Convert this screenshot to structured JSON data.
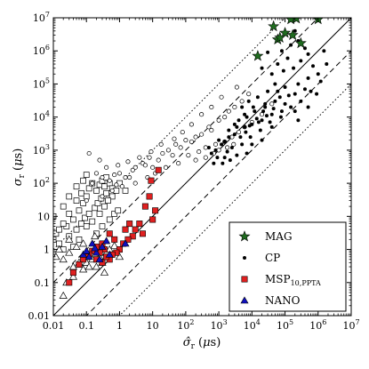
{
  "chart_data": {
    "type": "scatter",
    "xlabel": "σ̂_r (μs)",
    "ylabel": "σ_r (μs)",
    "x_scale": "log",
    "y_scale": "log",
    "xlim": [
      0.01,
      10000000
    ],
    "ylim": [
      0.01,
      10000000
    ],
    "x_tick_labels": [
      "0.01",
      "0.1",
      "1",
      "10",
      "10^2",
      "10^3",
      "10^4",
      "10^5",
      "10^6",
      "10^7"
    ],
    "y_tick_labels": [
      "0.01",
      "0.1",
      "1",
      "10",
      "10^2",
      "10^3",
      "10^4",
      "10^5",
      "10^6",
      "10^7"
    ],
    "reference_lines": [
      {
        "style": "solid",
        "ratio": 1
      },
      {
        "style": "dashed",
        "ratio": 0.1
      },
      {
        "style": "dashed",
        "ratio": 10
      },
      {
        "style": "dotted",
        "ratio": 0.01
      },
      {
        "style": "dotted",
        "ratio": 100
      }
    ],
    "legend_position": "bottom-right",
    "series": [
      {
        "name": "MAG",
        "marker": "star",
        "color": "#1f6b1f",
        "points": [
          [
            150000,
            9000000
          ],
          [
            220000,
            9500000
          ],
          [
            45000,
            5500000
          ],
          [
            1000000,
            9000000
          ],
          [
            100000,
            3500000
          ],
          [
            15000,
            700000
          ],
          [
            60000,
            2200000
          ],
          [
            300000,
            1700000
          ],
          [
            70000,
            2500000
          ],
          [
            170000,
            3000000
          ]
        ]
      },
      {
        "name": "CP",
        "marker": "dot",
        "color": "#000000",
        "points": [
          [
            200000,
            4000000
          ],
          [
            250000,
            2000000
          ],
          [
            150000,
            1500000
          ],
          [
            400000,
            1200000
          ],
          [
            500000,
            800000
          ],
          [
            80000,
            1000000
          ],
          [
            30000,
            900000
          ],
          [
            60000,
            400000
          ],
          [
            120000,
            600000
          ],
          [
            300000,
            500000
          ],
          [
            20000,
            300000
          ],
          [
            40000,
            200000
          ],
          [
            90000,
            250000
          ],
          [
            180000,
            300000
          ],
          [
            700000,
            350000
          ],
          [
            1500000,
            1000000
          ],
          [
            1000000,
            200000
          ],
          [
            500000,
            150000
          ],
          [
            250000,
            100000
          ],
          [
            100000,
            80000
          ],
          [
            50000,
            100000
          ],
          [
            30000,
            60000
          ],
          [
            15000,
            40000
          ],
          [
            8000,
            30000
          ],
          [
            5000,
            20000
          ],
          [
            70000,
            40000
          ],
          [
            200000,
            50000
          ],
          [
            400000,
            70000
          ],
          [
            600000,
            60000
          ],
          [
            150000,
            20000
          ],
          [
            80000,
            15000
          ],
          [
            40000,
            12000
          ],
          [
            20000,
            8000
          ],
          [
            10000,
            6000
          ],
          [
            6000,
            5000
          ],
          [
            3000,
            3000
          ],
          [
            2000,
            2500
          ],
          [
            1500,
            1800
          ],
          [
            4000,
            8000
          ],
          [
            7000,
            10000
          ],
          [
            12000,
            15000
          ],
          [
            25000,
            20000
          ],
          [
            50000,
            30000
          ],
          [
            35000,
            7000
          ],
          [
            18000,
            4000
          ],
          [
            9000,
            2500
          ],
          [
            5000,
            1500
          ],
          [
            2500,
            1200
          ],
          [
            1800,
            900
          ],
          [
            1200,
            1500
          ],
          [
            800,
            1000
          ],
          [
            600,
            800
          ],
          [
            1000,
            2000
          ],
          [
            3500,
            5000
          ],
          [
            6500,
            3500
          ],
          [
            14000,
            9000
          ],
          [
            28000,
            11000
          ],
          [
            45000,
            18000
          ],
          [
            100000,
            25000
          ],
          [
            300000,
            30000
          ],
          [
            130000,
            45000
          ],
          [
            60000,
            60000
          ],
          [
            25000,
            25000
          ],
          [
            11000,
            20000
          ],
          [
            6000,
            12000
          ],
          [
            3000,
            6000
          ],
          [
            2000,
            4000
          ],
          [
            4500,
            2500
          ],
          [
            8500,
            5500
          ],
          [
            16000,
            7000
          ],
          [
            22000,
            15000
          ],
          [
            75000,
            10000
          ],
          [
            200000,
            15000
          ],
          [
            500000,
            20000
          ],
          [
            900000,
            50000
          ],
          [
            40000,
            5000
          ],
          [
            20000,
            2000
          ],
          [
            10000,
            1500
          ],
          [
            7000,
            800
          ],
          [
            3500,
            700
          ],
          [
            1500,
            600
          ],
          [
            900,
            600
          ],
          [
            1300,
            400
          ],
          [
            2200,
            500
          ],
          [
            500,
            1200
          ],
          [
            700,
            400
          ],
          [
            250000,
            8000
          ],
          [
            1200000,
            120000
          ],
          [
            1800000,
            400000
          ]
        ]
      },
      {
        "name": "CP (open)",
        "marker": "open-circle",
        "color": "#000000",
        "points": [
          [
            0.2,
            200
          ],
          [
            0.3,
            150
          ],
          [
            0.5,
            120
          ],
          [
            0.15,
            100
          ],
          [
            0.8,
            90
          ],
          [
            1,
            200
          ],
          [
            2,
            150
          ],
          [
            3,
            300
          ],
          [
            5,
            400
          ],
          [
            8,
            600
          ],
          [
            10,
            300
          ],
          [
            20,
            800
          ],
          [
            30,
            1000
          ],
          [
            50,
            1500
          ],
          [
            100,
            2000
          ],
          [
            200,
            2500
          ],
          [
            300,
            3000
          ],
          [
            500,
            5000
          ],
          [
            1000,
            8000
          ],
          [
            2000,
            15000
          ],
          [
            3000,
            20000
          ],
          [
            5000,
            30000
          ],
          [
            8000,
            50000
          ],
          [
            1500,
            10000
          ],
          [
            600,
            4000
          ],
          [
            150,
            1800
          ],
          [
            70,
            1200
          ],
          [
            40,
            700
          ],
          [
            15,
            500
          ],
          [
            6,
            350
          ],
          [
            2.5,
            250
          ],
          [
            1.5,
            150
          ],
          [
            0.7,
            180
          ],
          [
            0.4,
            300
          ],
          [
            0.25,
            500
          ],
          [
            0.12,
            800
          ],
          [
            0.1,
            30
          ],
          [
            0.3,
            40
          ],
          [
            0.6,
            60
          ],
          [
            1.2,
            80
          ],
          [
            3,
            100
          ],
          [
            7,
            150
          ],
          [
            12,
            200
          ],
          [
            25,
            300
          ],
          [
            60,
            400
          ],
          [
            120,
            700
          ],
          [
            250,
            900
          ],
          [
            400,
            1200
          ],
          [
            800,
            1500
          ],
          [
            1500,
            1800
          ],
          [
            2500,
            2500
          ],
          [
            4000,
            3500
          ],
          [
            6000,
            5000
          ],
          [
            10000,
            7000
          ],
          [
            20000,
            12000
          ],
          [
            40000,
            25000
          ],
          [
            3500,
            80000
          ],
          [
            1200,
            40000
          ],
          [
            600,
            20000
          ],
          [
            300,
            12000
          ],
          [
            150,
            6000
          ],
          [
            80,
            3500
          ],
          [
            45,
            2200
          ],
          [
            18,
            1500
          ],
          [
            9,
            900
          ],
          [
            4,
            600
          ],
          [
            1.8,
            450
          ],
          [
            0.9,
            350
          ],
          [
            200,
            500
          ],
          [
            400,
            600
          ],
          [
            700,
            800
          ],
          [
            1000,
            1000
          ],
          [
            1800,
            1200
          ],
          [
            2800,
            1500
          ]
        ]
      },
      {
        "name": "MSP_10,PPTA",
        "marker": "square",
        "color": "#e02020",
        "points": [
          [
            15,
            250
          ],
          [
            9,
            120
          ],
          [
            8,
            40
          ],
          [
            6,
            20
          ],
          [
            10,
            8
          ],
          [
            4,
            6
          ],
          [
            3,
            4
          ],
          [
            2.5,
            2.5
          ],
          [
            1.8,
            2
          ],
          [
            1.3,
            1.5
          ],
          [
            1,
            1
          ],
          [
            0.8,
            0.8
          ],
          [
            0.6,
            0.7
          ],
          [
            0.5,
            0.5
          ],
          [
            0.4,
            0.6
          ],
          [
            0.35,
            1
          ],
          [
            0.3,
            1.5
          ],
          [
            0.25,
            0.8
          ],
          [
            0.2,
            1.2
          ],
          [
            0.15,
            0.9
          ],
          [
            0.12,
            0.7
          ],
          [
            0.1,
            0.6
          ],
          [
            0.08,
            0.5
          ],
          [
            0.06,
            0.35
          ],
          [
            0.04,
            0.2
          ],
          [
            0.03,
            0.1
          ],
          [
            0.5,
            3
          ],
          [
            0.7,
            2
          ],
          [
            1.5,
            4
          ],
          [
            2,
            6
          ],
          [
            5,
            3
          ],
          [
            12,
            15
          ],
          [
            0.3,
            0.4
          ],
          [
            0.2,
            0.5
          ]
        ]
      },
      {
        "name": "MSP_10,PPTA (open)",
        "marker": "open-square",
        "color": "#000000",
        "points": [
          [
            0.01,
            10
          ],
          [
            0.012,
            3
          ],
          [
            0.015,
            1.5
          ],
          [
            0.02,
            20
          ],
          [
            0.025,
            5
          ],
          [
            0.03,
            12
          ],
          [
            0.04,
            8
          ],
          [
            0.05,
            30
          ],
          [
            0.06,
            15
          ],
          [
            0.07,
            50
          ],
          [
            0.08,
            25
          ],
          [
            0.1,
            40
          ],
          [
            0.12,
            70
          ],
          [
            0.15,
            100
          ],
          [
            0.2,
            60
          ],
          [
            0.25,
            90
          ],
          [
            0.3,
            120
          ],
          [
            0.35,
            80
          ],
          [
            0.4,
            150
          ],
          [
            0.5,
            100
          ],
          [
            0.1,
            180
          ],
          [
            0.08,
            120
          ],
          [
            0.05,
            80
          ],
          [
            0.03,
            40
          ],
          [
            0.02,
            6
          ],
          [
            0.015,
            4
          ],
          [
            0.01,
            2
          ],
          [
            0.03,
            2.5
          ],
          [
            0.05,
            4
          ],
          [
            0.07,
            6
          ],
          [
            0.09,
            9
          ],
          [
            0.12,
            12
          ],
          [
            0.18,
            18
          ],
          [
            0.22,
            25
          ],
          [
            0.28,
            35
          ],
          [
            0.4,
            50
          ],
          [
            0.6,
            70
          ],
          [
            1,
            100
          ],
          [
            0.8,
            60
          ],
          [
            0.6,
            40
          ],
          [
            0.45,
            30
          ],
          [
            0.35,
            20
          ],
          [
            0.25,
            12
          ],
          [
            0.15,
            7
          ],
          [
            0.1,
            5
          ],
          [
            1.5,
            60
          ],
          [
            0.2,
            3
          ],
          [
            0.3,
            5
          ],
          [
            0.5,
            8
          ],
          [
            0.7,
            12
          ],
          [
            0.9,
            15
          ],
          [
            0.06,
            2
          ],
          [
            0.04,
            1.2
          ],
          [
            0.02,
            1
          ]
        ]
      },
      {
        "name": "NANO",
        "marker": "triangle",
        "color": "#1010c0",
        "points": [
          [
            0.08,
            0.7
          ],
          [
            0.1,
            0.9
          ],
          [
            0.15,
            1.5
          ],
          [
            0.2,
            0.8
          ],
          [
            0.3,
            1.2
          ],
          [
            0.4,
            1.8
          ],
          [
            0.12,
            0.6
          ],
          [
            0.25,
            0.5
          ],
          [
            0.5,
            0.7
          ],
          [
            1.5,
            1.5
          ],
          [
            0.18,
            1.1
          ]
        ]
      },
      {
        "name": "NANO (open)",
        "marker": "open-triangle",
        "color": "#000000",
        "points": [
          [
            0.012,
            0.6
          ],
          [
            0.015,
            1
          ],
          [
            0.02,
            0.5
          ],
          [
            0.03,
            0.8
          ],
          [
            0.04,
            0.3
          ],
          [
            0.05,
            1.2
          ],
          [
            0.06,
            0.4
          ],
          [
            0.08,
            0.25
          ],
          [
            0.1,
            0.4
          ],
          [
            0.12,
            0.3
          ],
          [
            0.15,
            0.5
          ],
          [
            0.2,
            0.3
          ],
          [
            0.25,
            0.6
          ],
          [
            0.3,
            0.4
          ],
          [
            0.4,
            0.8
          ],
          [
            0.5,
            1
          ],
          [
            0.7,
            1.3
          ],
          [
            1,
            0.6
          ],
          [
            0.35,
            0.2
          ],
          [
            0.04,
            0.15
          ],
          [
            0.025,
            0.1
          ],
          [
            0.02,
            0.04
          ],
          [
            0.03,
            2
          ],
          [
            0.08,
            1.5
          ],
          [
            0.18,
            2.5
          ]
        ]
      }
    ],
    "legend": [
      {
        "label": "MAG",
        "marker": "star",
        "color": "#1f6b1f"
      },
      {
        "label": "CP",
        "marker": "dot",
        "color": "#000000"
      },
      {
        "label": "MSP_10,PPTA",
        "marker": "square",
        "color": "#e02020"
      },
      {
        "label": "NANO",
        "marker": "triangle",
        "color": "#1010c0"
      }
    ]
  }
}
